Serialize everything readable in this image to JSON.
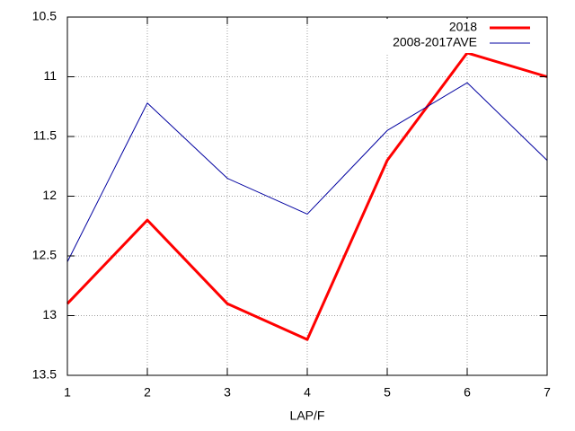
{
  "chart_data": {
    "type": "line",
    "xlabel": "LAP/F",
    "x": [
      1,
      2,
      3,
      4,
      5,
      6,
      7
    ],
    "series": [
      {
        "name": "2018",
        "color": "#ff0000",
        "width": 3,
        "values": [
          12.9,
          12.2,
          12.9,
          13.2,
          11.7,
          10.8,
          11.0
        ]
      },
      {
        "name": "2008-2017AVE",
        "color": "#0000a0",
        "width": 1,
        "values": [
          12.55,
          11.22,
          11.85,
          12.15,
          11.45,
          11.05,
          11.7
        ]
      }
    ],
    "xlim": [
      1,
      7
    ],
    "xticks": [
      1,
      2,
      3,
      4,
      5,
      6,
      7
    ],
    "ylim": [
      13.5,
      10.5
    ],
    "yticks": [
      10.5,
      11,
      11.5,
      12,
      12.5,
      13,
      13.5
    ],
    "grid": true,
    "legend": "top-right"
  }
}
